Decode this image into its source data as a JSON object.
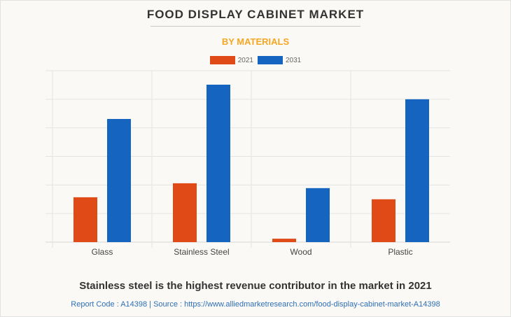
{
  "header": {
    "title": "FOOD DISPLAY CABINET MARKET",
    "subtitle": "BY MATERIALS"
  },
  "footer": {
    "caption": "Stainless steel is the highest revenue contributor in the market in 2021",
    "source": "Report Code : A14398  |  Source : https://www.alliedmarketresearch.com/food-display-cabinet-market-A14398"
  },
  "colors": {
    "series_2021": "#e04a17",
    "series_2031": "#1565c0",
    "subtitle": "#f5a623",
    "grid": "#e4e4e4"
  },
  "chart_data": {
    "type": "bar",
    "title": "FOOD DISPLAY CABINET MARKET",
    "subtitle": "BY MATERIALS",
    "xlabel": "",
    "ylabel": "",
    "categories": [
      "Glass",
      "Stainless Steel",
      "Wood",
      "Plastic"
    ],
    "series": [
      {
        "name": "2021",
        "values": [
          1.57,
          2.06,
          0.12,
          1.5
        ]
      },
      {
        "name": "2031",
        "values": [
          4.31,
          5.51,
          1.89,
          5.0
        ]
      }
    ],
    "ylim": [
      0,
      6
    ],
    "y_gridlines": [
      0,
      1,
      2,
      3,
      4,
      5,
      6
    ],
    "y_tick_labels_shown": false,
    "grid": true,
    "legend_position": "top-center"
  }
}
